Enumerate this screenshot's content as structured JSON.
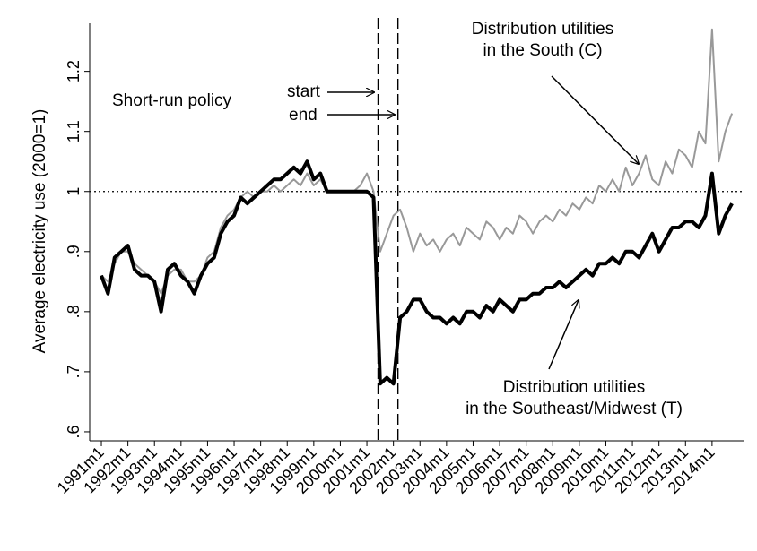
{
  "chart_data": {
    "type": "line",
    "y_label": "Average electricity use (2000=1)",
    "annotations": {
      "policy": "Short-run policy",
      "start": "start",
      "end": "end",
      "south": [
        "Distribution utilities",
        "in the South (C)"
      ],
      "southeast": [
        "Distribution utilities",
        "in the Southeast/Midwest (T)"
      ]
    },
    "reference_y": 1,
    "policy_x": [
      2001.42,
      2002.17
    ],
    "x": [
      1991,
      1991.25,
      1991.5,
      1991.75,
      1992,
      1992.25,
      1992.5,
      1992.75,
      1993,
      1993.25,
      1993.5,
      1993.75,
      1994,
      1994.25,
      1994.5,
      1994.75,
      1995,
      1995.25,
      1995.5,
      1995.75,
      1996,
      1996.25,
      1996.5,
      1996.75,
      1997,
      1997.25,
      1997.5,
      1997.75,
      1998,
      1998.25,
      1998.5,
      1998.75,
      1999,
      1999.25,
      1999.5,
      1999.75,
      2000,
      2000.25,
      2000.5,
      2000.75,
      2001,
      2001.25,
      2001.5,
      2001.75,
      2002,
      2002.25,
      2002.5,
      2002.75,
      2003,
      2003.25,
      2003.5,
      2003.75,
      2004,
      2004.25,
      2004.5,
      2004.75,
      2005,
      2005.25,
      2005.5,
      2005.75,
      2006,
      2006.25,
      2006.5,
      2006.75,
      2007,
      2007.25,
      2007.5,
      2007.75,
      2008,
      2008.25,
      2008.5,
      2008.75,
      2009,
      2009.25,
      2009.5,
      2009.75,
      2010,
      2010.25,
      2010.5,
      2010.75,
      2011,
      2011.25,
      2011.5,
      2011.75,
      2012,
      2012.25,
      2012.5,
      2012.75,
      2013,
      2013.25,
      2013.5,
      2013.75,
      2014,
      2014.25,
      2014.5,
      2014.75
    ],
    "series": [
      {
        "color": "#999999",
        "width": 2,
        "values": [
          0.86,
          0.85,
          0.88,
          0.9,
          0.9,
          0.88,
          0.87,
          0.86,
          0.85,
          0.83,
          0.86,
          0.87,
          0.87,
          0.85,
          0.85,
          0.86,
          0.89,
          0.9,
          0.94,
          0.96,
          0.97,
          0.99,
          1.0,
          0.99,
          1.0,
          1.0,
          1.01,
          1.0,
          1.01,
          1.02,
          1.01,
          1.03,
          1.01,
          1.02,
          1.0,
          1.0,
          1.0,
          1.0,
          1.0,
          1.01,
          1.03,
          1.0,
          0.9,
          0.93,
          0.96,
          0.97,
          0.94,
          0.9,
          0.93,
          0.91,
          0.92,
          0.9,
          0.92,
          0.93,
          0.91,
          0.94,
          0.93,
          0.92,
          0.95,
          0.94,
          0.92,
          0.94,
          0.93,
          0.96,
          0.95,
          0.93,
          0.95,
          0.96,
          0.95,
          0.97,
          0.96,
          0.98,
          0.97,
          0.99,
          0.98,
          1.01,
          1.0,
          1.02,
          1.0,
          1.04,
          1.01,
          1.03,
          1.06,
          1.02,
          1.01,
          1.05,
          1.03,
          1.07,
          1.06,
          1.04,
          1.1,
          1.08,
          1.27,
          1.05,
          1.1,
          1.13
        ]
      },
      {
        "color": "#000000",
        "width": 4,
        "values": [
          0.86,
          0.83,
          0.89,
          0.9,
          0.91,
          0.87,
          0.86,
          0.86,
          0.85,
          0.8,
          0.87,
          0.88,
          0.86,
          0.85,
          0.83,
          0.86,
          0.88,
          0.89,
          0.93,
          0.95,
          0.96,
          0.99,
          0.98,
          0.99,
          1.0,
          1.01,
          1.02,
          1.02,
          1.03,
          1.04,
          1.03,
          1.05,
          1.02,
          1.03,
          1.0,
          1.0,
          1.0,
          1.0,
          1.0,
          1.0,
          1.0,
          0.99,
          0.68,
          0.69,
          0.68,
          0.79,
          0.8,
          0.82,
          0.82,
          0.8,
          0.79,
          0.79,
          0.78,
          0.79,
          0.78,
          0.8,
          0.8,
          0.79,
          0.81,
          0.8,
          0.82,
          0.81,
          0.8,
          0.82,
          0.82,
          0.83,
          0.83,
          0.84,
          0.84,
          0.85,
          0.84,
          0.85,
          0.86,
          0.87,
          0.86,
          0.88,
          0.88,
          0.89,
          0.88,
          0.9,
          0.9,
          0.89,
          0.91,
          0.93,
          0.9,
          0.92,
          0.94,
          0.94,
          0.95,
          0.95,
          0.94,
          0.96,
          1.03,
          0.93,
          0.96,
          0.98
        ]
      }
    ],
    "xlim": [
      1990.56,
      2015.22
    ],
    "xticks": [
      {
        "value": 1991,
        "label": "1991m1"
      },
      {
        "value": 1992,
        "label": "1992m1"
      },
      {
        "value": 1993,
        "label": "1993m1"
      },
      {
        "value": 1994,
        "label": "1994m1"
      },
      {
        "value": 1995,
        "label": "1995m1"
      },
      {
        "value": 1996,
        "label": "1996m1"
      },
      {
        "value": 1997,
        "label": "1997m1"
      },
      {
        "value": 1998,
        "label": "1998m1"
      },
      {
        "value": 1999,
        "label": "1999m1"
      },
      {
        "value": 2000,
        "label": "2000m1"
      },
      {
        "value": 2001,
        "label": "2001m1"
      },
      {
        "value": 2002,
        "label": "2002m1"
      },
      {
        "value": 2003,
        "label": "2003m1"
      },
      {
        "value": 2004,
        "label": "2004m1"
      },
      {
        "value": 2005,
        "label": "2005m1"
      },
      {
        "value": 2006,
        "label": "2006m1"
      },
      {
        "value": 2007,
        "label": "2007m1"
      },
      {
        "value": 2008,
        "label": "2008m1"
      },
      {
        "value": 2009,
        "label": "2009m1"
      },
      {
        "value": 2010,
        "label": "2010m1"
      },
      {
        "value": 2011,
        "label": "2011m1"
      },
      {
        "value": 2012,
        "label": "2012m1"
      },
      {
        "value": 2013,
        "label": "2013m1"
      },
      {
        "value": 2014,
        "label": "2014m1"
      }
    ],
    "ylim": [
      0.585,
      1.28
    ],
    "yticks": [
      {
        "value": 0.6,
        "label": ".6"
      },
      {
        "value": 0.7,
        "label": ".7"
      },
      {
        "value": 0.8,
        "label": ".8"
      },
      {
        "value": 0.9,
        "label": ".9"
      },
      1,
      1.1,
      1.2
    ],
    "grid": false
  }
}
